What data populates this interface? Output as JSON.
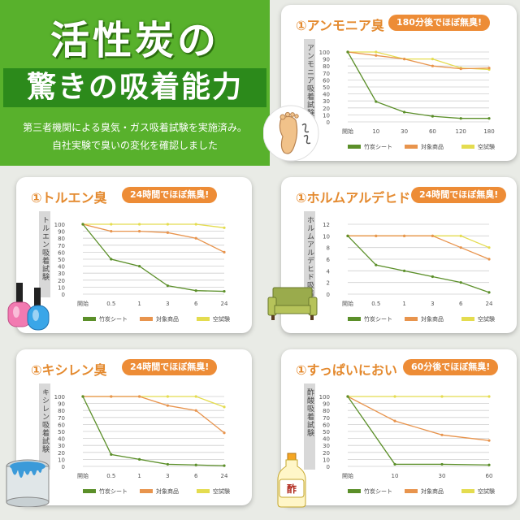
{
  "hero": {
    "title_line1": "活性炭の",
    "title_line2": "驚きの吸着能力",
    "subtitle_line1": "第三者機関による臭気・ガス吸着試験を実施済み。",
    "subtitle_line2": "自社実験で臭いの変化を確認しました"
  },
  "colors": {
    "bamboo": "#5b8f29",
    "target": "#e8944d",
    "blank": "#e4dc4f",
    "accent": "#ed8c36",
    "hero_green": "#58b12c"
  },
  "legend": [
    "竹炭シート",
    "対象商品",
    "空試験"
  ],
  "chart_data": [
    {
      "type": "line",
      "title": "①アンモニア臭",
      "badge": "180分後でほぼ無臭!",
      "ylabel": "アンモニア吸着試験",
      "categories": [
        "開始",
        "10",
        "30",
        "60",
        "120",
        "180"
      ],
      "ylim": [
        0,
        100
      ],
      "yticks": [
        "0",
        "10",
        "20",
        "30",
        "40",
        "50",
        "60",
        "70",
        "80",
        "90",
        "100"
      ],
      "series": [
        {
          "name": "竹炭シート",
          "values": [
            100,
            29,
            14,
            8,
            5,
            5
          ]
        },
        {
          "name": "対象商品",
          "values": [
            100,
            95,
            90,
            80,
            76,
            77
          ]
        },
        {
          "name": "空試験",
          "values": [
            100,
            100,
            90,
            90,
            77,
            75
          ]
        }
      ],
      "icon": "foot-icon"
    },
    {
      "type": "line",
      "title": "①トルエン臭",
      "badge": "24時間でほぼ無臭!",
      "ylabel": "トルエン吸着試験",
      "categories": [
        "開始",
        "0.5",
        "1",
        "3",
        "6",
        "24"
      ],
      "ylim": [
        0,
        100
      ],
      "yticks": [
        "0",
        "10",
        "20",
        "30",
        "40",
        "50",
        "60",
        "70",
        "80",
        "90",
        "100"
      ],
      "series": [
        {
          "name": "竹炭シート",
          "values": [
            100,
            50,
            40,
            12,
            5,
            4
          ]
        },
        {
          "name": "対象商品",
          "values": [
            100,
            90,
            90,
            88,
            80,
            60
          ]
        },
        {
          "name": "空試験",
          "values": [
            100,
            100,
            100,
            100,
            100,
            95
          ]
        }
      ],
      "icon": "nail-polish-icon"
    },
    {
      "type": "line",
      "title": "①ホルムアルデヒド",
      "badge": "24時間でほぼ無臭!",
      "ylabel": "ホルムアルデヒド吸着試験",
      "categories": [
        "開始",
        "0.5",
        "1",
        "3",
        "6",
        "24"
      ],
      "ylim": [
        0,
        12
      ],
      "yticks": [
        "0",
        "2",
        "4",
        "6",
        "8",
        "10",
        "12"
      ],
      "series": [
        {
          "name": "竹炭シート",
          "values": [
            10,
            5,
            4,
            3,
            2,
            0.3
          ]
        },
        {
          "name": "対象商品",
          "values": [
            10,
            10,
            10,
            10,
            8,
            6
          ]
        },
        {
          "name": "空試験",
          "values": [
            10,
            10,
            10,
            10,
            10,
            8
          ]
        }
      ],
      "icon": "sofa-icon"
    },
    {
      "type": "line",
      "title": "①キシレン臭",
      "badge": "24時間でほぼ無臭!",
      "ylabel": "キシレン吸着試験",
      "categories": [
        "開始",
        "0.5",
        "1",
        "3",
        "6",
        "24"
      ],
      "ylim": [
        0,
        100
      ],
      "yticks": [
        "0",
        "10",
        "20",
        "30",
        "40",
        "50",
        "60",
        "70",
        "80",
        "90",
        "100"
      ],
      "series": [
        {
          "name": "竹炭シート",
          "values": [
            100,
            17,
            10,
            3,
            2,
            1
          ]
        },
        {
          "name": "対象商品",
          "values": [
            100,
            100,
            100,
            87,
            80,
            48
          ]
        },
        {
          "name": "空試験",
          "values": [
            100,
            100,
            100,
            100,
            100,
            85
          ]
        }
      ],
      "icon": "paint-can-icon"
    },
    {
      "type": "line",
      "title": "①すっぱいにおい",
      "badge": "60分後でほぼ無臭!",
      "ylabel": "酢酸吸着試験",
      "categories": [
        "開始",
        "10",
        "30",
        "60"
      ],
      "ylim": [
        0,
        100
      ],
      "yticks": [
        "0",
        "10",
        "20",
        "30",
        "40",
        "50",
        "60",
        "70",
        "80",
        "90",
        "100"
      ],
      "series": [
        {
          "name": "竹炭シート",
          "values": [
            100,
            3,
            3,
            2
          ]
        },
        {
          "name": "対象商品",
          "values": [
            100,
            65,
            45,
            37
          ]
        },
        {
          "name": "空試験",
          "values": [
            100,
            100,
            100,
            100
          ]
        }
      ],
      "icon": "vinegar-bottle-icon",
      "icon_text": "酢"
    }
  ]
}
